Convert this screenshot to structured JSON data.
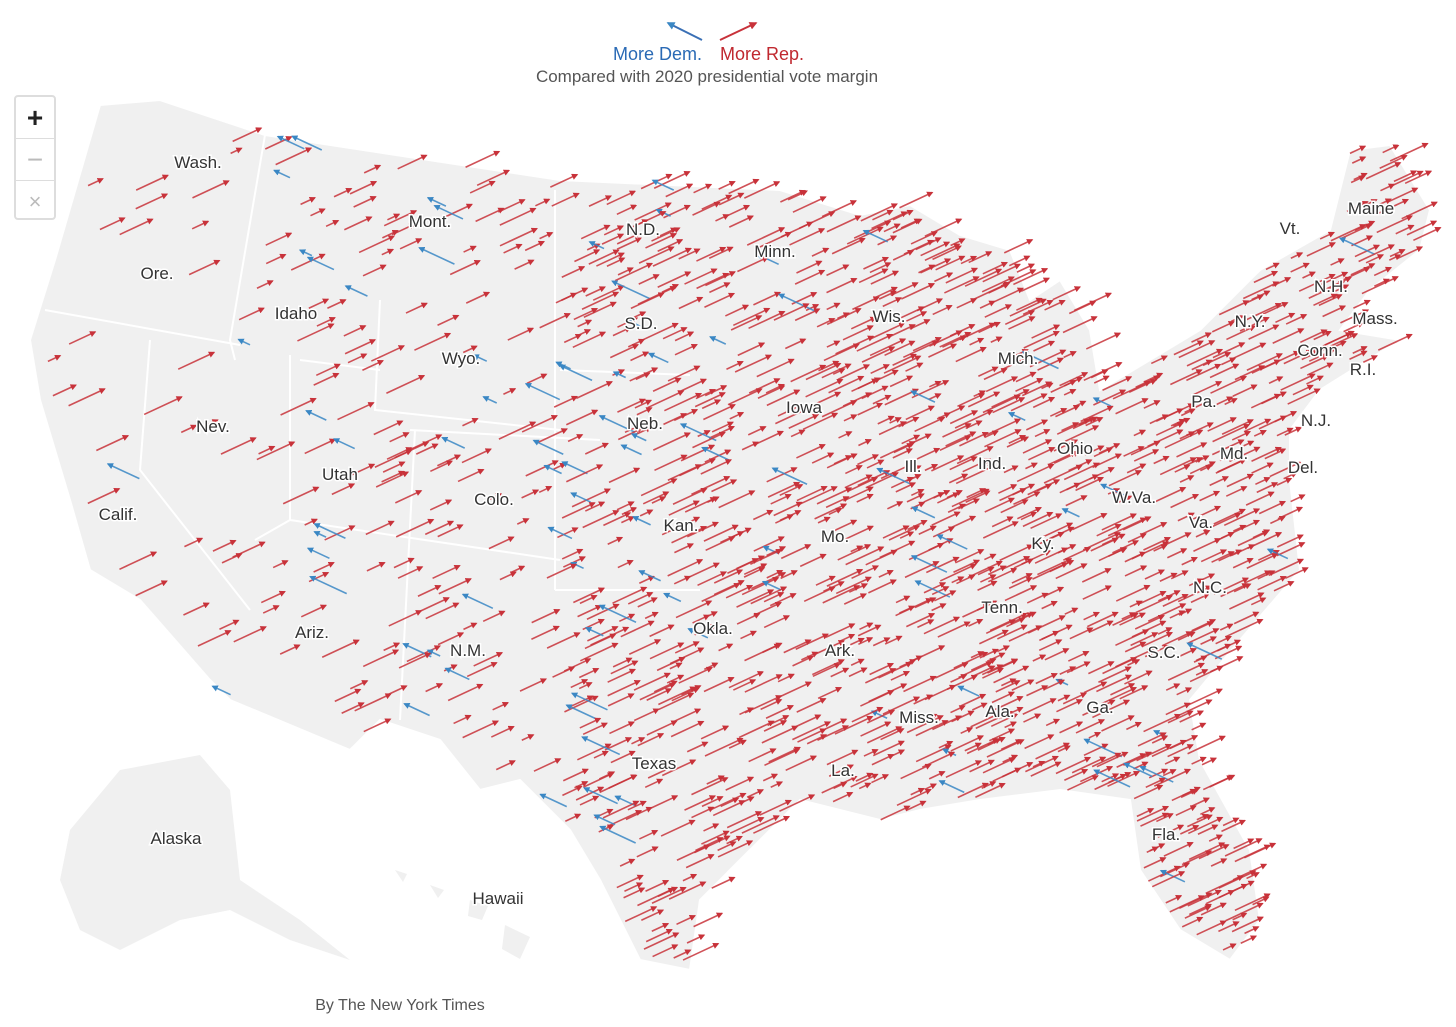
{
  "legend": {
    "dem": "More Dem.",
    "rep": "More Rep."
  },
  "subtitle": "Compared with 2020 presidential vote margin",
  "controls": [
    "+",
    "−",
    "×"
  ],
  "states": [
    "Wash.",
    "Ore.",
    "Calif.",
    "Idaho",
    "Nev.",
    "Mont.",
    "Wyo.",
    "Utah",
    "Ariz.",
    "Colo.",
    "N.M.",
    "N.D.",
    "S.D.",
    "Neb.",
    "Kan.",
    "Okla.",
    "Texas",
    "Minn.",
    "Iowa",
    "Mo.",
    "Ark.",
    "La.",
    "Wis.",
    "Ill.",
    "Mich.",
    "Ind.",
    "Ohio",
    "Ky.",
    "Tenn.",
    "Miss.",
    "Ala.",
    "Ga.",
    "Fla.",
    "S.C.",
    "N.C.",
    "Va.",
    "W.Va.",
    "Md.",
    "Del.",
    "Pa.",
    "N.J.",
    "N.Y.",
    "Conn.",
    "R.I.",
    "Mass.",
    "Vt.",
    "N.H.",
    "Maine",
    "Alaska",
    "Hawaii"
  ],
  "credit": "By The New York Times"
}
